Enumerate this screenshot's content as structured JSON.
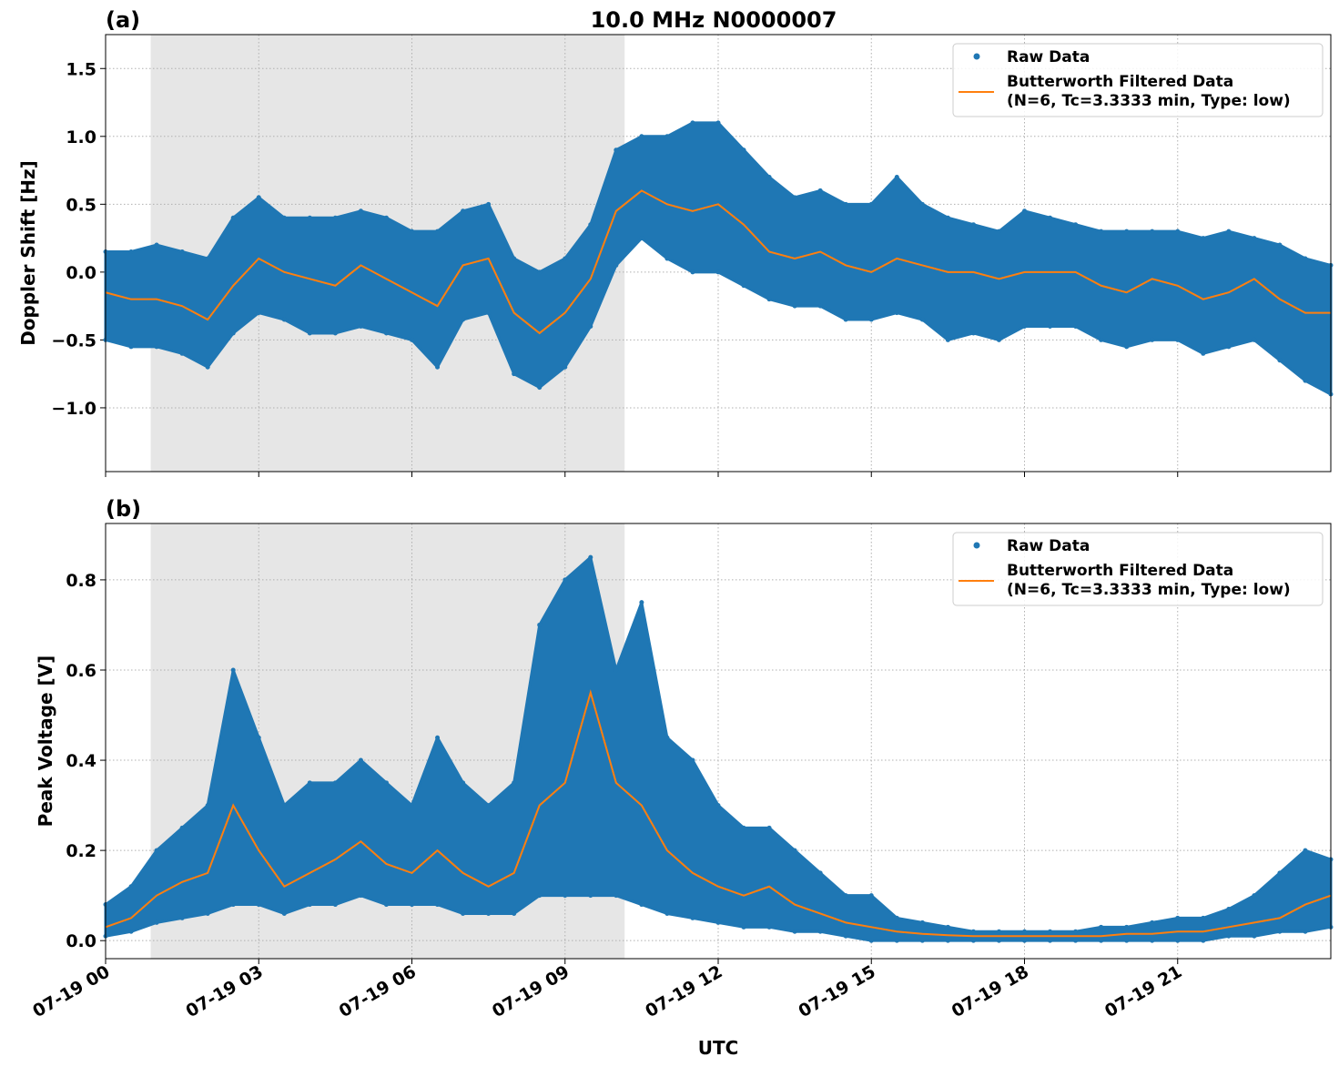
{
  "title": "10.0 MHz N0000007",
  "xlabel": "UTC",
  "x_ticks": [
    "07-19 00",
    "07-19 03",
    "07-19 06",
    "07-19 09",
    "07-19 12",
    "07-19 15",
    "07-19 18",
    "07-19 21"
  ],
  "colors": {
    "raw": "#1f77b4",
    "filtered": "#ff7f0e",
    "shade": "#e6e6e6"
  },
  "legend": {
    "raw": "Raw Data",
    "filtered_line1": "Butterworth Filtered Data",
    "filtered_line2": "(N=6, Tc=3.3333 min, Type: low)",
    "placement": "top-right"
  },
  "chart_data": [
    {
      "type": "scatter+line",
      "panel_label": "(a)",
      "ylabel": "Doppler Shift [Hz]",
      "ylim": [
        -1.47,
        1.75
      ],
      "xlim": [
        "07-19 00:00",
        "07-20 00:00"
      ],
      "y_ticks": [
        "1.5",
        "1.0",
        "0.5",
        "0.0",
        "−0.5",
        "−1.0"
      ],
      "y_tick_values": [
        1.5,
        1.0,
        0.5,
        0.0,
        -0.5,
        -1.0
      ],
      "grid": true,
      "shaded_span": [
        "07-19 00:53",
        "07-19 10:10"
      ],
      "x": [
        "07-19 00:00",
        "07-19 00:30",
        "07-19 01:00",
        "07-19 01:30",
        "07-19 02:00",
        "07-19 02:30",
        "07-19 03:00",
        "07-19 03:30",
        "07-19 04:00",
        "07-19 04:30",
        "07-19 05:00",
        "07-19 05:30",
        "07-19 06:00",
        "07-19 06:30",
        "07-19 07:00",
        "07-19 07:30",
        "07-19 08:00",
        "07-19 08:30",
        "07-19 09:00",
        "07-19 09:30",
        "07-19 10:00",
        "07-19 10:30",
        "07-19 11:00",
        "07-19 11:30",
        "07-19 12:00",
        "07-19 12:30",
        "07-19 13:00",
        "07-19 13:30",
        "07-19 14:00",
        "07-19 14:30",
        "07-19 15:00",
        "07-19 15:30",
        "07-19 16:00",
        "07-19 16:30",
        "07-19 17:00",
        "07-19 17:30",
        "07-19 18:00",
        "07-19 18:30",
        "07-19 19:00",
        "07-19 19:30",
        "07-19 20:00",
        "07-19 20:30",
        "07-19 21:00",
        "07-19 21:30",
        "07-19 22:00",
        "07-19 22:30",
        "07-19 23:00",
        "07-19 23:30",
        "07-20 00:00"
      ],
      "series": [
        {
          "name": "Raw Data",
          "kind": "scatter-envelope",
          "low": [
            -0.5,
            -0.55,
            -0.55,
            -0.6,
            -0.7,
            -0.45,
            -0.3,
            -0.35,
            -0.45,
            -0.45,
            -0.4,
            -0.45,
            -0.5,
            -0.7,
            -0.35,
            -0.3,
            -0.75,
            -0.85,
            -0.7,
            -0.4,
            0.05,
            0.25,
            0.1,
            0.0,
            0.0,
            -0.1,
            -0.2,
            -0.25,
            -0.25,
            -0.35,
            -0.35,
            -0.3,
            -0.35,
            -0.5,
            -0.45,
            -0.5,
            -0.4,
            -0.4,
            -0.4,
            -0.5,
            -0.55,
            -0.5,
            -0.5,
            -0.6,
            -0.55,
            -0.5,
            -0.65,
            -0.8,
            -0.9
          ],
          "high": [
            0.15,
            0.15,
            0.2,
            0.15,
            0.1,
            0.4,
            0.55,
            0.4,
            0.4,
            0.4,
            0.45,
            0.4,
            0.3,
            0.3,
            0.45,
            0.5,
            0.1,
            0.0,
            0.1,
            0.35,
            0.9,
            1.0,
            1.0,
            1.1,
            1.1,
            0.9,
            0.7,
            0.55,
            0.6,
            0.5,
            0.5,
            0.7,
            0.5,
            0.4,
            0.35,
            0.3,
            0.45,
            0.4,
            0.35,
            0.3,
            0.3,
            0.3,
            0.3,
            0.25,
            0.3,
            0.25,
            0.2,
            0.1,
            0.05
          ]
        },
        {
          "name": "Butterworth Filtered Data",
          "kind": "line",
          "values": [
            -0.15,
            -0.2,
            -0.2,
            -0.25,
            -0.35,
            -0.1,
            0.1,
            0.0,
            -0.05,
            -0.1,
            0.05,
            -0.05,
            -0.15,
            -0.25,
            0.05,
            0.1,
            -0.3,
            -0.45,
            -0.3,
            -0.05,
            0.45,
            0.6,
            0.5,
            0.45,
            0.5,
            0.35,
            0.15,
            0.1,
            0.15,
            0.05,
            0.0,
            0.1,
            0.05,
            0.0,
            0.0,
            -0.05,
            0.0,
            0.0,
            0.0,
            -0.1,
            -0.15,
            -0.05,
            -0.1,
            -0.2,
            -0.15,
            -0.05,
            -0.2,
            -0.3,
            -0.3
          ]
        }
      ]
    },
    {
      "type": "scatter+line",
      "panel_label": "(b)",
      "ylabel": "Peak Voltage [V]",
      "ylim": [
        -0.04,
        0.925
      ],
      "xlim": [
        "07-19 00:00",
        "07-20 00:00"
      ],
      "y_ticks": [
        "0.8",
        "0.6",
        "0.4",
        "0.2",
        "0.0"
      ],
      "y_tick_values": [
        0.8,
        0.6,
        0.4,
        0.2,
        0.0
      ],
      "grid": true,
      "shaded_span": [
        "07-19 00:53",
        "07-19 10:10"
      ],
      "x": [
        "07-19 00:00",
        "07-19 00:30",
        "07-19 01:00",
        "07-19 01:30",
        "07-19 02:00",
        "07-19 02:30",
        "07-19 03:00",
        "07-19 03:30",
        "07-19 04:00",
        "07-19 04:30",
        "07-19 05:00",
        "07-19 05:30",
        "07-19 06:00",
        "07-19 06:30",
        "07-19 07:00",
        "07-19 07:30",
        "07-19 08:00",
        "07-19 08:30",
        "07-19 09:00",
        "07-19 09:30",
        "07-19 10:00",
        "07-19 10:30",
        "07-19 11:00",
        "07-19 11:30",
        "07-19 12:00",
        "07-19 12:30",
        "07-19 13:00",
        "07-19 13:30",
        "07-19 14:00",
        "07-19 14:30",
        "07-19 15:00",
        "07-19 15:30",
        "07-19 16:00",
        "07-19 16:30",
        "07-19 17:00",
        "07-19 17:30",
        "07-19 18:00",
        "07-19 18:30",
        "07-19 19:00",
        "07-19 19:30",
        "07-19 20:00",
        "07-19 20:30",
        "07-19 21:00",
        "07-19 21:30",
        "07-19 22:00",
        "07-19 22:30",
        "07-19 23:00",
        "07-19 23:30",
        "07-20 00:00"
      ],
      "series": [
        {
          "name": "Raw Data",
          "kind": "scatter-envelope",
          "low": [
            0.01,
            0.02,
            0.04,
            0.05,
            0.06,
            0.08,
            0.08,
            0.06,
            0.08,
            0.08,
            0.1,
            0.08,
            0.08,
            0.08,
            0.06,
            0.06,
            0.06,
            0.1,
            0.1,
            0.1,
            0.1,
            0.08,
            0.06,
            0.05,
            0.04,
            0.03,
            0.03,
            0.02,
            0.02,
            0.01,
            0.0,
            0.0,
            0.0,
            0.0,
            0.0,
            0.0,
            0.0,
            0.0,
            0.0,
            0.0,
            0.0,
            0.0,
            0.0,
            0.0,
            0.01,
            0.01,
            0.02,
            0.02,
            0.03
          ],
          "high": [
            0.08,
            0.12,
            0.2,
            0.25,
            0.3,
            0.6,
            0.45,
            0.3,
            0.35,
            0.35,
            0.4,
            0.35,
            0.3,
            0.45,
            0.35,
            0.3,
            0.35,
            0.7,
            0.8,
            0.85,
            0.6,
            0.75,
            0.45,
            0.4,
            0.3,
            0.25,
            0.25,
            0.2,
            0.15,
            0.1,
            0.1,
            0.05,
            0.04,
            0.03,
            0.02,
            0.02,
            0.02,
            0.02,
            0.02,
            0.03,
            0.03,
            0.04,
            0.05,
            0.05,
            0.07,
            0.1,
            0.15,
            0.2,
            0.18
          ]
        },
        {
          "name": "Butterworth Filtered Data",
          "kind": "line",
          "values": [
            0.03,
            0.05,
            0.1,
            0.13,
            0.15,
            0.3,
            0.2,
            0.12,
            0.15,
            0.18,
            0.22,
            0.17,
            0.15,
            0.2,
            0.15,
            0.12,
            0.15,
            0.3,
            0.35,
            0.55,
            0.35,
            0.3,
            0.2,
            0.15,
            0.12,
            0.1,
            0.12,
            0.08,
            0.06,
            0.04,
            0.03,
            0.02,
            0.015,
            0.012,
            0.01,
            0.01,
            0.01,
            0.01,
            0.01,
            0.01,
            0.015,
            0.015,
            0.02,
            0.02,
            0.03,
            0.04,
            0.05,
            0.08,
            0.1
          ]
        }
      ]
    }
  ]
}
